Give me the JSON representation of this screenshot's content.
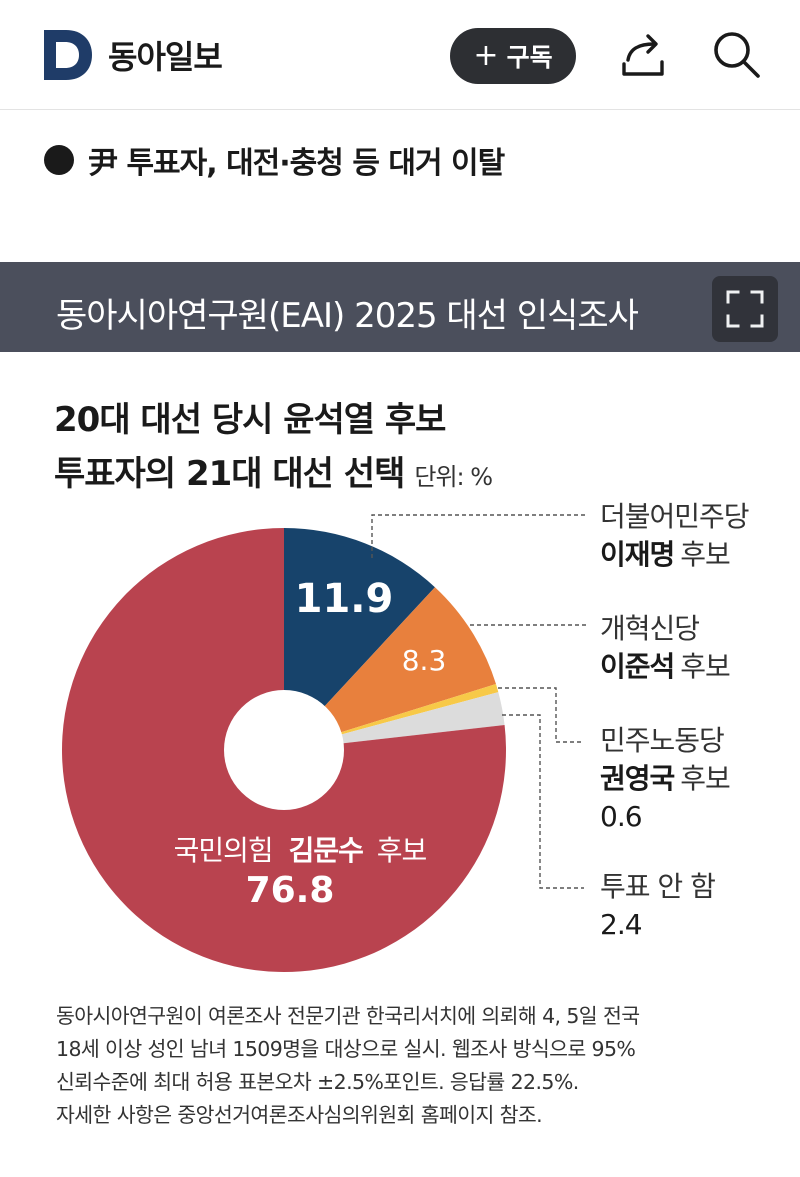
{
  "header": {
    "logo_letter": "D",
    "site_name": "동아일보",
    "subscribe_label": "구독",
    "subscribe_plus": "+"
  },
  "article": {
    "subheading": "尹 투표자, 대전·충청 등 대거 이탈"
  },
  "infographic": {
    "banner_title": "동아시아연구원(EAI) 2025 대선 인식조사",
    "title_line1": "20대 대선 당시 윤석열 후보",
    "title_line2": "투표자의 21대 대선 선택",
    "unit": "단위: %",
    "footnote": [
      "동아시아연구원이 여론조사 전문기관 한국리서치에 의뢰해 4, 5일 전국",
      "18세 이상 성인 남녀 1509명을 대상으로 실시. 웹조사 방식으로 95%",
      "신뢰수준에 최대 허용 표본오차 ±2.5%포인트. 응답률 22.5%.",
      "자세한 사항은 중앙선거여론조사심의위원회 홈페이지 참조."
    ]
  },
  "chart_data": {
    "type": "pie",
    "title": "20대 대선 당시 윤석열 후보 투표자의 21대 대선 선택",
    "unit": "단위: %",
    "slices": [
      {
        "party": "더불어민주당",
        "candidate": "이재명",
        "suffix": "후보",
        "value": 11.9,
        "value_label": "11.9",
        "color": "#17436b"
      },
      {
        "party": "개혁신당",
        "candidate": "이준석",
        "suffix": "후보",
        "value": 8.3,
        "value_label": "8.3",
        "color": "#e8803d"
      },
      {
        "party": "민주노동당",
        "candidate": "권영국",
        "suffix": "후보",
        "value": 0.6,
        "value_label": "0.6",
        "color": "#f7c948"
      },
      {
        "party": "",
        "candidate": "투표 안 함",
        "suffix": "",
        "value": 2.4,
        "value_label": "2.4",
        "color": "#dcdcdc"
      },
      {
        "party": "국민의힘",
        "candidate": "김문수",
        "suffix": "후보",
        "value": 76.8,
        "value_label": "76.8",
        "color": "#b9434f"
      }
    ]
  },
  "colors": {
    "brand_navy": "#1f3c68",
    "banner_bg": "#4b4f5c"
  },
  "icons": {
    "share": "share-icon",
    "search": "search-icon",
    "expand": "fullscreen-icon"
  }
}
